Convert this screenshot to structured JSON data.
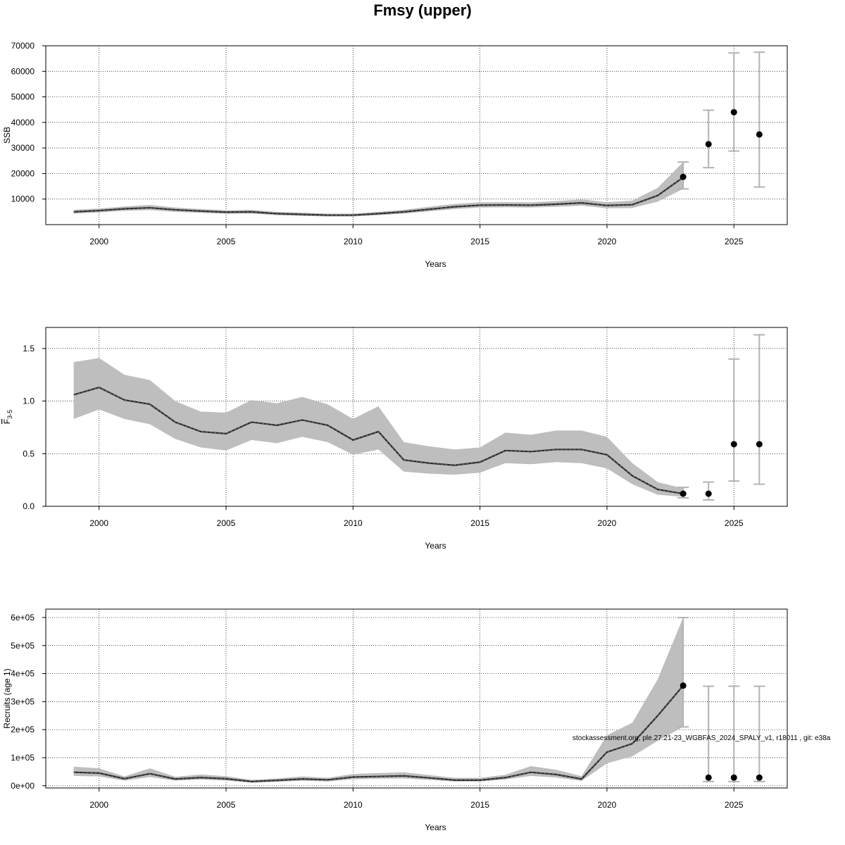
{
  "title": "Fmsy (upper)",
  "credit": "stockassessment.org, ple.27.21-23_WGBFAS_2024_SPALY_v1, r18011 , git: e38a",
  "colors": {
    "band": "#bebebe",
    "line": "#262626",
    "point": "#000000",
    "errorbar": "#b3b3b3",
    "grid": "#000000"
  },
  "chart_data": [
    {
      "type": "line",
      "ylabel": "SSB",
      "xlabel": "Years",
      "xlim": [
        1997.9,
        2027.1
      ],
      "ylim": [
        0,
        70000
      ],
      "xticks": [
        2000,
        2005,
        2010,
        2015,
        2020,
        2025
      ],
      "yticks": [
        10000,
        20000,
        30000,
        40000,
        50000,
        60000,
        70000
      ],
      "ytick_labels": [
        "10000",
        "20000",
        "30000",
        "40000",
        "50000",
        "60000",
        "70000"
      ],
      "grid": true,
      "x": [
        1999,
        2000,
        2001,
        2002,
        2003,
        2004,
        2005,
        2006,
        2007,
        2008,
        2009,
        2010,
        2011,
        2012,
        2013,
        2014,
        2015,
        2016,
        2017,
        2018,
        2019,
        2020,
        2021,
        2022,
        2023
      ],
      "estimate": [
        5000,
        5500,
        6200,
        6600,
        5800,
        5300,
        4900,
        5000,
        4300,
        4000,
        3700,
        3700,
        4300,
        5000,
        6000,
        7000,
        7600,
        7700,
        7600,
        8000,
        8500,
        7500,
        7800,
        11400,
        18500
      ],
      "lower": [
        4300,
        4800,
        5400,
        5700,
        5000,
        4600,
        4200,
        4300,
        3700,
        3400,
        3200,
        3200,
        3700,
        4300,
        5200,
        6100,
        6700,
        6800,
        6700,
        7000,
        7400,
        6400,
        6500,
        9000,
        14000
      ],
      "upper": [
        5800,
        6300,
        7100,
        7700,
        6700,
        6100,
        5600,
        5800,
        5000,
        4700,
        4300,
        4300,
        5000,
        5800,
        7000,
        8100,
        8700,
        8800,
        8700,
        9200,
        9900,
        8800,
        9400,
        14400,
        24500
      ],
      "forecast": [
        {
          "x": 2023,
          "value": 18700,
          "lower": 14000,
          "upper": 24500
        },
        {
          "x": 2024,
          "value": 31500,
          "lower": 22300,
          "upper": 44800
        },
        {
          "x": 2025,
          "value": 44000,
          "lower": 28800,
          "upper": 67200
        },
        {
          "x": 2026,
          "value": 35300,
          "lower": 14700,
          "upper": 67500
        }
      ]
    },
    {
      "type": "line",
      "ylabel": "F̄3-5",
      "ylabel_main": "F",
      "ylabel_sub": "3-5",
      "xlabel": "Years",
      "xlim": [
        1997.9,
        2027.1
      ],
      "ylim": [
        0,
        1.7
      ],
      "xticks": [
        2000,
        2005,
        2010,
        2015,
        2020,
        2025
      ],
      "yticks": [
        0,
        0.5,
        1.0,
        1.5
      ],
      "ytick_labels": [
        "0.0",
        "0.5",
        "1.0",
        "1.5"
      ],
      "grid": true,
      "x": [
        1999,
        2000,
        2001,
        2002,
        2003,
        2004,
        2005,
        2006,
        2007,
        2008,
        2009,
        2010,
        2011,
        2012,
        2013,
        2014,
        2015,
        2016,
        2017,
        2018,
        2019,
        2020,
        2021,
        2022,
        2023
      ],
      "estimate": [
        1.06,
        1.13,
        1.01,
        0.97,
        0.8,
        0.71,
        0.69,
        0.8,
        0.77,
        0.82,
        0.77,
        0.63,
        0.71,
        0.44,
        0.41,
        0.39,
        0.42,
        0.53,
        0.52,
        0.54,
        0.54,
        0.49,
        0.29,
        0.16,
        0.12
      ],
      "lower": [
        0.83,
        0.92,
        0.83,
        0.78,
        0.64,
        0.56,
        0.53,
        0.63,
        0.6,
        0.66,
        0.61,
        0.49,
        0.54,
        0.33,
        0.31,
        0.3,
        0.32,
        0.41,
        0.4,
        0.42,
        0.41,
        0.36,
        0.21,
        0.11,
        0.09
      ],
      "upper": [
        1.37,
        1.41,
        1.25,
        1.2,
        1.0,
        0.9,
        0.89,
        1.01,
        0.98,
        1.04,
        0.97,
        0.83,
        0.95,
        0.61,
        0.57,
        0.54,
        0.56,
        0.7,
        0.68,
        0.72,
        0.72,
        0.66,
        0.41,
        0.23,
        0.17
      ],
      "forecast": [
        {
          "x": 2023,
          "value": 0.12,
          "lower": 0.08,
          "upper": 0.18
        },
        {
          "x": 2024,
          "value": 0.12,
          "lower": 0.06,
          "upper": 0.23
        },
        {
          "x": 2025,
          "value": 0.59,
          "lower": 0.24,
          "upper": 1.4
        },
        {
          "x": 2026,
          "value": 0.59,
          "lower": 0.21,
          "upper": 1.63
        }
      ]
    },
    {
      "type": "line",
      "ylabel": "Recruits (age 1)",
      "xlabel": "Years",
      "xlim": [
        1997.9,
        2027.1
      ],
      "ylim": [
        -8000,
        630000
      ],
      "xticks": [
        2000,
        2005,
        2010,
        2015,
        2020,
        2025
      ],
      "yticks": [
        0,
        100000,
        200000,
        300000,
        400000,
        500000,
        600000
      ],
      "ytick_labels": [
        "0e+00",
        "1e+05",
        "2e+05",
        "3e+05",
        "4e+05",
        "5e+05",
        "6e+05"
      ],
      "grid": true,
      "x": [
        1999,
        2000,
        2001,
        2002,
        2003,
        2004,
        2005,
        2006,
        2007,
        2008,
        2009,
        2010,
        2011,
        2012,
        2013,
        2014,
        2015,
        2016,
        2017,
        2018,
        2019,
        2020,
        2021,
        2022,
        2023
      ],
      "estimate": [
        48000,
        45000,
        25000,
        43000,
        24000,
        29000,
        25000,
        15000,
        19000,
        24000,
        21000,
        31000,
        33000,
        35000,
        28000,
        20000,
        20000,
        29000,
        48000,
        40000,
        24000,
        120000,
        150000,
        250000,
        357000
      ],
      "lower": [
        35000,
        33000,
        18000,
        31000,
        18000,
        22000,
        18000,
        11000,
        14000,
        18000,
        15000,
        23000,
        25000,
        26000,
        21000,
        15000,
        15000,
        22000,
        35000,
        29000,
        17000,
        80000,
        105000,
        160000,
        210000
      ],
      "upper": [
        68000,
        62000,
        33000,
        62000,
        32000,
        40000,
        34000,
        21000,
        26000,
        33000,
        28000,
        42000,
        45000,
        48000,
        38000,
        28000,
        28000,
        39000,
        70000,
        57000,
        34000,
        180000,
        225000,
        380000,
        600000
      ],
      "forecast": [
        {
          "x": 2023,
          "value": 357000,
          "lower": 210000,
          "upper": 600000
        },
        {
          "x": 2024,
          "value": 29000,
          "lower": 15000,
          "upper": 355000
        },
        {
          "x": 2025,
          "value": 29000,
          "lower": 15000,
          "upper": 355000
        },
        {
          "x": 2026,
          "value": 29000,
          "lower": 15000,
          "upper": 355000
        }
      ]
    }
  ]
}
